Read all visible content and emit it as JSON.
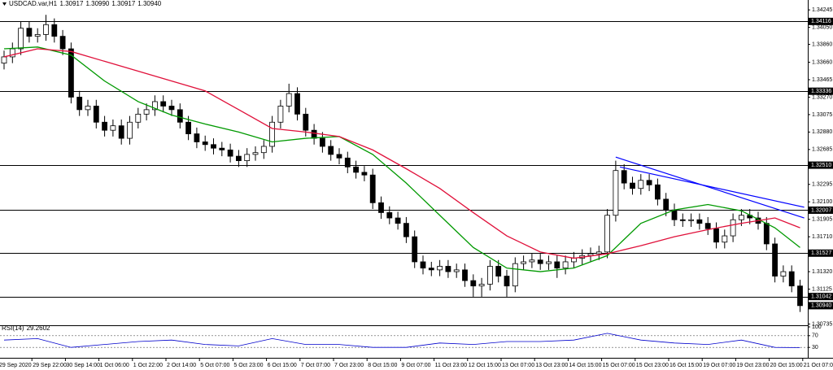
{
  "chart_data": {
    "type": "candlestick",
    "title": "USDCAD.var,H1",
    "header_values": [
      "1.30917",
      "1.30990",
      "1.30917",
      "1.30940"
    ],
    "x_labels": [
      "29 Sep 2020",
      "29 Sep 22:00",
      "30 Sep 14:00",
      "1 Oct 06:00",
      "1 Oct 22:00",
      "2 Oct 14:00",
      "5 Oct 07:00",
      "5 Oct 23:00",
      "6 Oct 15:00",
      "7 Oct 07:00",
      "7 Oct 23:00",
      "8 Oct 15:00",
      "9 Oct 07:00",
      "11 Oct 23:00",
      "12 Oct 15:00",
      "13 Oct 07:00",
      "13 Oct 23:00",
      "14 Oct 15:00",
      "15 Oct 07:00",
      "15 Oct 23:00",
      "16 Oct 15:00",
      "19 Oct 07:00",
      "19 Oct 23:00",
      "20 Oct 15:00",
      "21 Oct 07:00"
    ],
    "open": [
      1.3365,
      1.3372,
      1.3381,
      1.3404,
      1.3395,
      1.3397,
      1.3408,
      1.3395,
      1.3381,
      1.3327,
      1.3313,
      1.3317,
      1.3299,
      1.329,
      1.3295,
      1.3281,
      1.3299,
      1.3308,
      1.3313,
      1.3322,
      1.3317,
      1.3313,
      1.3299,
      1.3286,
      1.3277,
      1.3274,
      1.327,
      1.3268,
      1.3261,
      1.3256,
      1.3263,
      1.3265,
      1.3272,
      1.3299,
      1.3317,
      1.3331,
      1.3308,
      1.329,
      1.3281,
      1.3272,
      1.3263,
      1.3259,
      1.3249,
      1.3243,
      1.324,
      1.3209,
      1.3198,
      1.3192,
      1.3186,
      1.3171,
      1.3143,
      1.3136,
      1.3134,
      1.3138,
      1.3132,
      1.3134,
      1.3122,
      1.3116,
      1.3118,
      1.3138,
      1.3127,
      1.3116,
      1.3141,
      1.3143,
      1.3145,
      1.3141,
      1.3143,
      1.3136,
      1.3143,
      1.3147,
      1.315,
      1.3152,
      1.3154,
      1.3195,
      1.3245,
      1.3231,
      1.3225,
      1.3234,
      1.3229,
      1.3213,
      1.3201,
      1.319,
      1.3189,
      1.319,
      1.3186,
      1.318,
      1.3165,
      1.3172,
      1.319,
      1.3195,
      1.3192,
      1.3186,
      1.3163,
      1.3127,
      1.3132,
      1.3116
    ],
    "high": [
      1.3379,
      1.3388,
      1.3411,
      1.3411,
      1.3404,
      1.3419,
      1.3415,
      1.3402,
      1.3388,
      1.3334,
      1.3324,
      1.3324,
      1.3306,
      1.3302,
      1.3302,
      1.3306,
      1.3315,
      1.332,
      1.3329,
      1.3329,
      1.3324,
      1.332,
      1.3306,
      1.3293,
      1.3284,
      1.3281,
      1.3277,
      1.3275,
      1.3268,
      1.327,
      1.3272,
      1.3279,
      1.3306,
      1.3324,
      1.3342,
      1.3338,
      1.3315,
      1.3297,
      1.3288,
      1.3279,
      1.327,
      1.3266,
      1.3256,
      1.325,
      1.3247,
      1.3216,
      1.3205,
      1.3199,
      1.3193,
      1.3178,
      1.315,
      1.3143,
      1.3145,
      1.3145,
      1.3141,
      1.3141,
      1.3129,
      1.3125,
      1.3145,
      1.3145,
      1.3134,
      1.3148,
      1.315,
      1.3152,
      1.3152,
      1.315,
      1.315,
      1.315,
      1.3154,
      1.3157,
      1.3159,
      1.3161,
      1.3202,
      1.3256,
      1.3252,
      1.3238,
      1.3241,
      1.3241,
      1.3236,
      1.322,
      1.3208,
      1.3197,
      1.3197,
      1.3197,
      1.3193,
      1.3187,
      1.3179,
      1.3197,
      1.3202,
      1.3202,
      1.3199,
      1.3193,
      1.317,
      1.3139,
      1.3139,
      1.3123
    ],
    "low": [
      1.3358,
      1.3365,
      1.3374,
      1.3388,
      1.3388,
      1.339,
      1.3388,
      1.3374,
      1.332,
      1.3306,
      1.3306,
      1.3292,
      1.3283,
      1.3283,
      1.3274,
      1.3274,
      1.3292,
      1.3301,
      1.3306,
      1.331,
      1.3306,
      1.3292,
      1.3279,
      1.327,
      1.3267,
      1.3263,
      1.3261,
      1.3254,
      1.3249,
      1.3249,
      1.3256,
      1.3258,
      1.3265,
      1.3292,
      1.331,
      1.3301,
      1.3283,
      1.3274,
      1.3265,
      1.3256,
      1.3252,
      1.3242,
      1.3236,
      1.3233,
      1.3202,
      1.3191,
      1.3185,
      1.3179,
      1.3164,
      1.3136,
      1.3129,
      1.3127,
      1.3127,
      1.3125,
      1.3125,
      1.3115,
      1.3104,
      1.3104,
      1.3111,
      1.312,
      1.3104,
      1.3109,
      1.3134,
      1.3136,
      1.3134,
      1.3134,
      1.3125,
      1.3129,
      1.3136,
      1.314,
      1.3143,
      1.3145,
      1.3147,
      1.3188,
      1.3224,
      1.3218,
      1.3218,
      1.3222,
      1.3206,
      1.3194,
      1.3183,
      1.3182,
      1.3182,
      1.3179,
      1.3173,
      1.3158,
      1.3158,
      1.3165,
      1.3183,
      1.3185,
      1.3179,
      1.3156,
      1.312,
      1.312,
      1.3109,
      1.3087
    ],
    "close": [
      1.3372,
      1.3381,
      1.3404,
      1.3395,
      1.3397,
      1.3408,
      1.3395,
      1.3381,
      1.3327,
      1.3313,
      1.3317,
      1.3299,
      1.329,
      1.3295,
      1.3281,
      1.3299,
      1.3308,
      1.3313,
      1.3322,
      1.3317,
      1.3313,
      1.3299,
      1.3286,
      1.3277,
      1.3274,
      1.327,
      1.3268,
      1.3261,
      1.3256,
      1.3263,
      1.3265,
      1.3272,
      1.3299,
      1.3317,
      1.3331,
      1.3308,
      1.329,
      1.3281,
      1.3272,
      1.3263,
      1.3259,
      1.3249,
      1.3243,
      1.324,
      1.3209,
      1.3198,
      1.3192,
      1.3186,
      1.3171,
      1.3143,
      1.3136,
      1.3134,
      1.3138,
      1.3132,
      1.3134,
      1.3122,
      1.3116,
      1.3118,
      1.3138,
      1.3127,
      1.3116,
      1.3141,
      1.3143,
      1.3145,
      1.3141,
      1.3143,
      1.3136,
      1.3143,
      1.3147,
      1.315,
      1.3152,
      1.3154,
      1.3195,
      1.3245,
      1.3231,
      1.3225,
      1.3234,
      1.3229,
      1.3213,
      1.3201,
      1.319,
      1.3189,
      1.319,
      1.3186,
      1.318,
      1.3165,
      1.3172,
      1.319,
      1.3195,
      1.3192,
      1.3186,
      1.3163,
      1.3127,
      1.3132,
      1.3116,
      1.3094
    ],
    "ylim": [
      1.3073,
      1.3431
    ],
    "yticks": [
      1.34245,
      {
        "value": 1.3405,
        "label": "1.34050"
      },
      {
        "value": 1.3386,
        "label": "1.33860"
      },
      {
        "value": 1.3366,
        "label": "1.33660"
      },
      1.33465,
      {
        "value": 1.3327,
        "label": "1.33270"
      },
      1.33075,
      {
        "value": 1.3288,
        "label": "1.32880"
      },
      1.32685,
      1.32295,
      {
        "value": 1.321,
        "label": "1.32100"
      },
      1.31905,
      {
        "value": 1.3171,
        "label": "1.31710"
      },
      {
        "value": 1.3132,
        "label": "1.31320"
      },
      1.31125,
      1.30735
    ],
    "levels": [
      1.34116,
      1.33336,
      {
        "value": 1.3251,
        "label": "1.32510"
      },
      1.32007,
      1.31527,
      1.31042
    ],
    "last_price": {
      "value": 1.3094,
      "label": "1.30940"
    },
    "moving_averages": [
      {
        "color": "#009900",
        "x": [
          0,
          4,
          8,
          12,
          16,
          20,
          24,
          28,
          32,
          36,
          40,
          44,
          48,
          52,
          56,
          60,
          64,
          68,
          72,
          76,
          80,
          84,
          88,
          92,
          95
        ],
        "values": [
          1.3381,
          1.3383,
          1.3374,
          1.3345,
          1.3322,
          1.3307,
          1.3297,
          1.3288,
          1.3277,
          1.3281,
          1.3283,
          1.3263,
          1.3231,
          1.3195,
          1.3159,
          1.3136,
          1.3132,
          1.3136,
          1.315,
          1.3186,
          1.3201,
          1.3207,
          1.32,
          1.3181,
          1.3159
        ]
      },
      {
        "color": "#e0103a",
        "x": [
          0,
          4,
          8,
          12,
          16,
          20,
          24,
          28,
          32,
          36,
          40,
          44,
          48,
          52,
          56,
          60,
          64,
          68,
          72,
          76,
          80,
          84,
          88,
          92,
          95
        ],
        "values": [
          1.3372,
          1.3381,
          1.3378,
          1.3367,
          1.3356,
          1.3345,
          1.3334,
          1.3313,
          1.3292,
          1.3288,
          1.3283,
          1.3268,
          1.3247,
          1.3225,
          1.3198,
          1.3172,
          1.3154,
          1.3147,
          1.3152,
          1.3161,
          1.3171,
          1.3179,
          1.3186,
          1.3192,
          1.3181
        ]
      }
    ],
    "trendlines": [
      {
        "color": "#0000ff",
        "x": [
          73,
          95.5
        ],
        "values": [
          1.326,
          1.3192
        ]
      },
      {
        "color": "#0000ff",
        "x": [
          73.5,
          95.5
        ],
        "values": [
          1.3249,
          1.3204
        ]
      }
    ],
    "indicator": {
      "name": "RSI(14)",
      "x": [
        0,
        4,
        8,
        12,
        16,
        20,
        24,
        28,
        32,
        36,
        40,
        44,
        48,
        52,
        56,
        60,
        64,
        68,
        72,
        76,
        80,
        84,
        88,
        92,
        95
      ],
      "values": [
        55,
        60,
        30,
        40,
        50,
        55,
        40,
        35,
        60,
        40,
        40,
        30,
        30,
        45,
        40,
        50,
        50,
        55,
        78,
        55,
        45,
        40,
        55,
        30,
        29.2602
      ],
      "color": "#0000cc",
      "ylim": [
        0,
        100
      ],
      "yticks": [
        100,
        70,
        30
      ],
      "levels": [
        70,
        30
      ]
    },
    "grid": false
  }
}
